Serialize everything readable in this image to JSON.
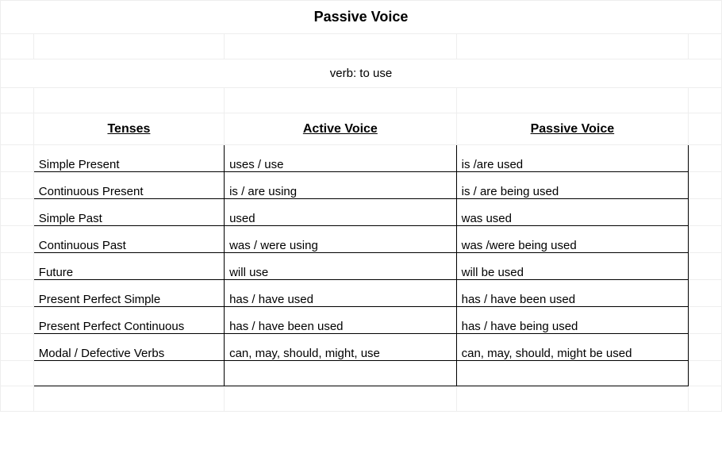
{
  "title": "Passive Voice",
  "subtitle": "verb: to use",
  "headers": {
    "tenses": "Tenses",
    "active": "Active Voice",
    "passive": "Passive Voice"
  },
  "rows": [
    {
      "tense": "Simple Present",
      "active": "uses / use",
      "passive": "is /are used"
    },
    {
      "tense": "Continuous Present",
      "active": "is / are using",
      "passive": "is / are being used"
    },
    {
      "tense": "Simple Past",
      "active": "used",
      "passive": "was used"
    },
    {
      "tense": "Continuous Past",
      "active": "was / were using",
      "passive": "was /were being used"
    },
    {
      "tense": "Future",
      "active": "will use",
      "passive": "will be used"
    },
    {
      "tense": "Present Perfect Simple",
      "active": "has / have used",
      "passive": "has / have been used"
    },
    {
      "tense": "Present Perfect Continuous",
      "active": "has / have been used",
      "passive": "has / have being used"
    },
    {
      "tense": "Modal / Defective Verbs",
      "active": "can, may, should, might, use",
      "passive": "can, may, should, might be used"
    }
  ],
  "style": {
    "grid_light": "#eeeeee",
    "grid_dark": "#000000",
    "background": "#ffffff",
    "text": "#000000",
    "title_fontsize": 18,
    "header_fontsize": 16,
    "body_fontsize": 15
  }
}
